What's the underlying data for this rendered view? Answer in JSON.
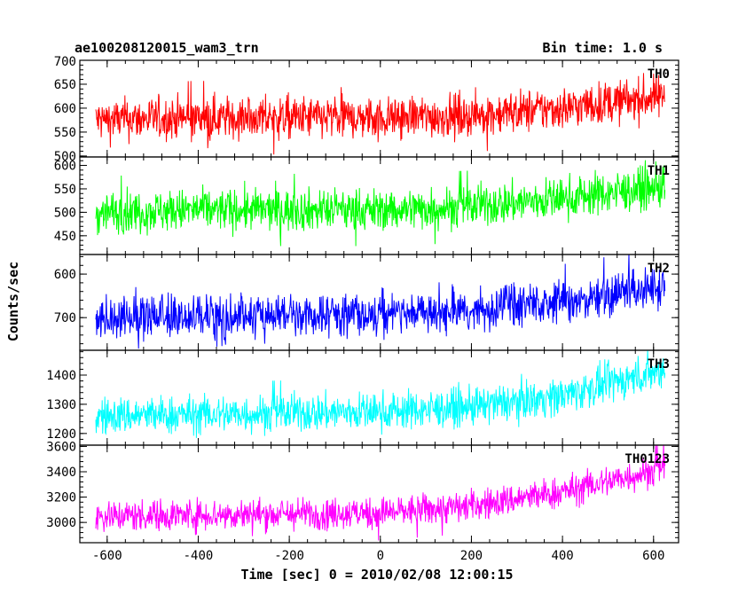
{
  "header": {
    "title": "ae100208120015_wam3_trn",
    "bin_time": "Bin time: 1.0 s"
  },
  "chart_data": {
    "type": "line",
    "title": "ae100208120015_wam3_trn",
    "xlabel": "Time [sec] 0 = 2010/02/08 12:00:15",
    "ylabel": "Counts/sec",
    "xlim": [
      -660,
      655
    ],
    "x_ticks": [
      "-600",
      "-400",
      "-200",
      "0",
      "200",
      "400",
      "600"
    ],
    "x_tick_values": [
      -600,
      -400,
      -200,
      0,
      200,
      400,
      600
    ],
    "data_range": [
      -625,
      625
    ],
    "panels": [
      {
        "name": "TH0",
        "color": "#ff0000",
        "ylim": [
          498,
          700
        ],
        "inverted": false,
        "y_ticks": [
          "700",
          "650",
          "600",
          "550",
          "500"
        ],
        "y_tick_values": [
          700,
          650,
          600,
          550,
          500
        ],
        "trend_x": [
          -625,
          -400,
          0,
          200,
          400,
          625
        ],
        "trend_y": [
          575,
          580,
          580,
          585,
          600,
          625
        ],
        "noise": 22
      },
      {
        "name": "TH1",
        "color": "#00ff00",
        "ylim": [
          410,
          618
        ],
        "inverted": false,
        "y_ticks": [
          "600",
          "550",
          "500",
          "450"
        ],
        "y_tick_values": [
          600,
          550,
          500,
          450
        ],
        "trend_x": [
          -625,
          -400,
          0,
          200,
          400,
          625
        ],
        "trend_y": [
          500,
          505,
          505,
          512,
          530,
          555
        ],
        "noise": 22
      },
      {
        "name": "TH2",
        "color": "#0000ff",
        "ylim": [
          555,
          775
        ],
        "inverted": true,
        "y_ticks": [
          "600",
          "700"
        ],
        "y_tick_values": [
          600,
          700
        ],
        "trend_x": [
          -625,
          -400,
          0,
          200,
          400,
          625
        ],
        "trend_y": [
          700,
          698,
          695,
          685,
          665,
          625
        ],
        "noise": 25
      },
      {
        "name": "TH3",
        "color": "#00ffff",
        "ylim": [
          1160,
          1485
        ],
        "inverted": false,
        "y_ticks": [
          "1400",
          "1300",
          "1200"
        ],
        "y_tick_values": [
          1400,
          1300,
          1200
        ],
        "trend_x": [
          -625,
          -400,
          0,
          200,
          400,
          625
        ],
        "trend_y": [
          1260,
          1265,
          1275,
          1290,
          1330,
          1420
        ],
        "noise": 32
      },
      {
        "name": "TH0123",
        "color": "#ff00ff",
        "ylim": [
          2840,
          3610
        ],
        "inverted": false,
        "y_ticks": [
          "3600",
          "3400",
          "3200",
          "3000"
        ],
        "y_tick_values": [
          3600,
          3400,
          3200,
          3000
        ],
        "trend_x": [
          -625,
          -400,
          0,
          200,
          400,
          625
        ],
        "trend_y": [
          3050,
          3060,
          3075,
          3130,
          3240,
          3430
        ],
        "noise": 62
      }
    ]
  }
}
